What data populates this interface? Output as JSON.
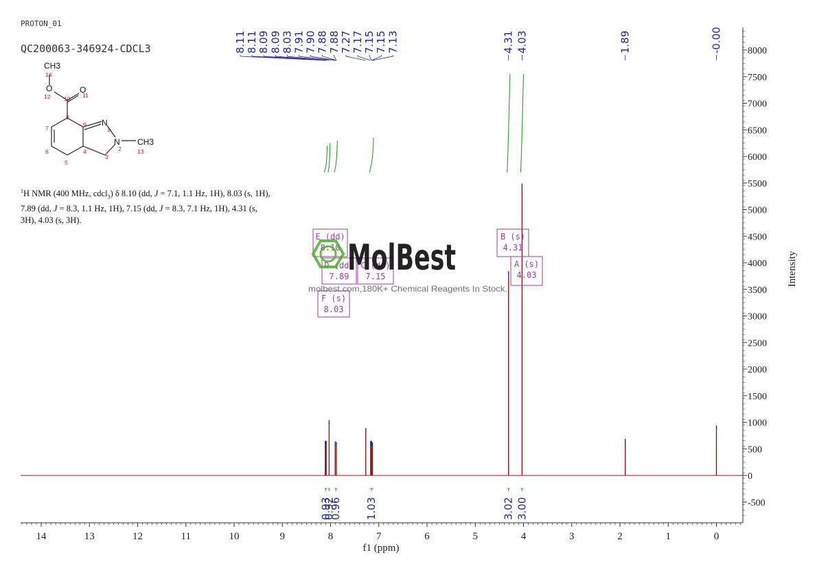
{
  "header": {
    "experiment": "PROTON_01",
    "sample": "QC200063-346924-CDCL3"
  },
  "description": {
    "nucleus_sup": "1",
    "text_a": "H NMR (400 MHz, cdcl",
    "sub3": "3",
    "text_b": ") δ 8.10 (dd, ",
    "j1": "J",
    "text_c": " = 7.1, 1.1 Hz, 1H), 8.03 (s, 1H), 7.89 (dd, ",
    "j2": "J",
    "text_d": " = 8.3, 1.1 Hz, 1H), 7.15 (dd, ",
    "j3": "J",
    "text_e": " = 8.3, 7.1 Hz, 1H), 4.31 (s, 3H), 4.03 (s, 3H)."
  },
  "molecule": {
    "ch3_top": "CH3",
    "o_ester": "O",
    "o_carbonyl": "O",
    "n1": "N",
    "n2": "N",
    "ch3_right": "CH3",
    "atom_numbers": [
      "14",
      "12",
      "10",
      "11",
      "8",
      "7",
      "9",
      "1",
      "6",
      "2",
      "13",
      "4",
      "5",
      "3"
    ]
  },
  "watermark": {
    "brand": "MolBest",
    "tagline": "molbest.com,180K+ Chemical Reagents In Stock."
  },
  "colors": {
    "spectrum": "#8b1a1a",
    "peak_labels": "#1f2a8c",
    "integrals": "#2e9b2e",
    "multiplet_boxes": "#9b3fa0",
    "axis": "#333333",
    "atom_numbers": "#cc2222",
    "watermark_green": "#4caf2a"
  },
  "chart_data": {
    "type": "line",
    "xlabel": "f1 (ppm)",
    "ylabel": "Intensity",
    "xlim": [
      14.5,
      -0.5
    ],
    "ylim": [
      -800,
      8500
    ],
    "x_ticks": [
      14,
      13,
      12,
      11,
      10,
      9,
      8,
      7,
      6,
      5,
      4,
      3,
      2,
      1,
      0
    ],
    "y_ticks": [
      8000,
      7500,
      7000,
      6500,
      6000,
      5500,
      5000,
      4500,
      4000,
      3500,
      3000,
      2500,
      2000,
      1500,
      1000,
      500,
      0,
      -500
    ],
    "y_tick_labels": [
      "8000",
      "7500",
      "7000",
      "6500",
      "6000",
      "5500",
      "5000",
      "4500",
      "4000",
      "3500",
      "3000",
      "2500",
      "2000",
      "1500",
      "1000",
      "500",
      "0",
      "-500"
    ],
    "peaks": [
      {
        "ppm": 8.11,
        "height": 560
      },
      {
        "ppm": 8.09,
        "height": 560
      },
      {
        "ppm": 8.03,
        "height": 950
      },
      {
        "ppm": 7.905,
        "height": 550
      },
      {
        "ppm": 7.88,
        "height": 540
      },
      {
        "ppm": 7.27,
        "height": 800
      },
      {
        "ppm": 7.17,
        "height": 560
      },
      {
        "ppm": 7.15,
        "height": 560
      },
      {
        "ppm": 7.13,
        "height": 530
      },
      {
        "ppm": 4.31,
        "height": 3750
      },
      {
        "ppm": 4.03,
        "height": 5400
      },
      {
        "ppm": 1.89,
        "height": 600
      },
      {
        "ppm": 0.0,
        "height": 850
      }
    ],
    "peak_labels": {
      "group1": {
        "values": [
          "8.11",
          "8.11",
          "8.09",
          "8.09",
          "8.03",
          "7.91",
          "7.90",
          "7.88",
          "7.88",
          "7.27",
          "7.17",
          "7.15",
          "7.15",
          "7.13"
        ],
        "ppm": [
          8.11,
          8.11,
          8.09,
          8.09,
          8.03,
          7.91,
          7.9,
          7.88,
          7.88,
          7.27,
          7.17,
          7.15,
          7.15,
          7.13
        ]
      },
      "singles": [
        {
          "label": "4.31",
          "ppm": 4.31
        },
        {
          "label": "4.03",
          "ppm": 4.03
        },
        {
          "label": "1.89",
          "ppm": 1.89
        },
        {
          "label": "-0.00",
          "ppm": 0.0
        }
      ]
    },
    "integrals": [
      {
        "value": "0.93",
        "ppm": 8.1,
        "from": 8.13,
        "to": 8.07
      },
      {
        "value": "0.92",
        "ppm": 8.03,
        "from": 8.05,
        "to": 8.01
      },
      {
        "value": "0.96",
        "ppm": 7.89,
        "from": 7.92,
        "to": 7.86
      },
      {
        "value": "1.03",
        "ppm": 7.15,
        "from": 7.19,
        "to": 7.11
      },
      {
        "value": "3.02",
        "ppm": 4.31,
        "from": 4.34,
        "to": 4.28
      },
      {
        "value": "3.00",
        "ppm": 4.03,
        "from": 4.06,
        "to": 4.0
      }
    ],
    "multiplets": [
      {
        "label": "E (dd)",
        "shift": "8.10"
      },
      {
        "label": "D (dd)",
        "shift": "7.89"
      },
      {
        "label": "C (dd)",
        "shift": "7.15"
      },
      {
        "label": "F (s)",
        "shift": "8.03"
      },
      {
        "label": "B (s)",
        "shift": "4.31"
      },
      {
        "label": "A (s)",
        "shift": "4.03"
      }
    ]
  }
}
